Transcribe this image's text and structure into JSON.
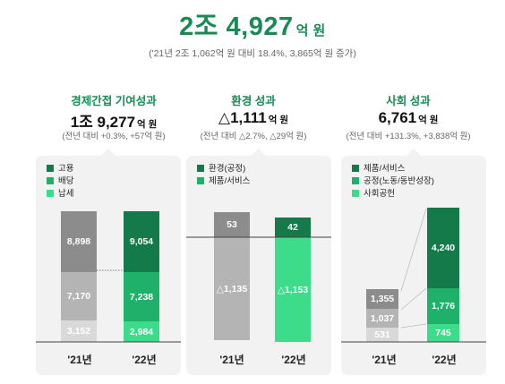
{
  "header": {
    "total_value": "2조 4,927",
    "total_unit": "억 원",
    "total_sub": "('21년 2조 1,062억 원 대비 18.4%, 3,865억 원 증가)"
  },
  "colors": {
    "accent": "#1a8a55",
    "dark_green": "#157a4a",
    "mid_green": "#1fb06a",
    "light_green": "#3ddc8a",
    "dark_gray": "#8c8c8c",
    "mid_gray": "#b4b4b4",
    "light_gray": "#d9d9d9"
  },
  "sections": [
    {
      "title": "경제간접 기여성과",
      "value": "1조 9,277",
      "unit": "억 원",
      "sub": "(전년 대비 +0.3%, +57억 원)",
      "legend": [
        "고용",
        "배당",
        "납세"
      ]
    },
    {
      "title": "환경 성과",
      "value": "△1,111",
      "unit": "억 원",
      "sub": "(전년 대비 △2.7%, △29억 원)",
      "legend": [
        "환경(공정)",
        "제품/서비스"
      ]
    },
    {
      "title": "사회 성과",
      "value": "6,761",
      "unit": "억 원",
      "sub": "(전년 대비 +131.3%, +3,838억 원)",
      "legend": [
        "제품/서비스",
        "공정(노동/동반성장)",
        "사회공헌"
      ]
    }
  ],
  "chart_data": [
    {
      "type": "bar",
      "stacked": true,
      "categories": [
        "'21년",
        "'22년"
      ],
      "series": [
        {
          "name": "납세",
          "values": [
            3152,
            2984
          ]
        },
        {
          "name": "배당",
          "values": [
            7170,
            7238
          ]
        },
        {
          "name": "고용",
          "values": [
            8898,
            9054
          ]
        }
      ],
      "data_labels": [
        [
          "3,152",
          "7,170",
          "8,898"
        ],
        [
          "2,984",
          "7,238",
          "9,054"
        ]
      ]
    },
    {
      "type": "bar",
      "stacked": true,
      "categories": [
        "'21년",
        "'22년"
      ],
      "series": [
        {
          "name": "환경(공정)",
          "values": [
            53,
            42
          ]
        },
        {
          "name": "제품/서비스",
          "values": [
            -1135,
            -1153
          ]
        }
      ],
      "data_labels": [
        [
          "53",
          "△1,135"
        ],
        [
          "42",
          "△1,153"
        ]
      ]
    },
    {
      "type": "bar",
      "stacked": true,
      "categories": [
        "'21년",
        "'22년"
      ],
      "series": [
        {
          "name": "사회공헌",
          "values": [
            531,
            745
          ]
        },
        {
          "name": "공정(노동/동반성장)",
          "values": [
            1037,
            1776
          ]
        },
        {
          "name": "제품/서비스",
          "values": [
            1355,
            4240
          ]
        }
      ],
      "data_labels": [
        [
          "531",
          "1,037",
          "1,355"
        ],
        [
          "745",
          "1,776",
          "4,240"
        ]
      ]
    }
  ]
}
